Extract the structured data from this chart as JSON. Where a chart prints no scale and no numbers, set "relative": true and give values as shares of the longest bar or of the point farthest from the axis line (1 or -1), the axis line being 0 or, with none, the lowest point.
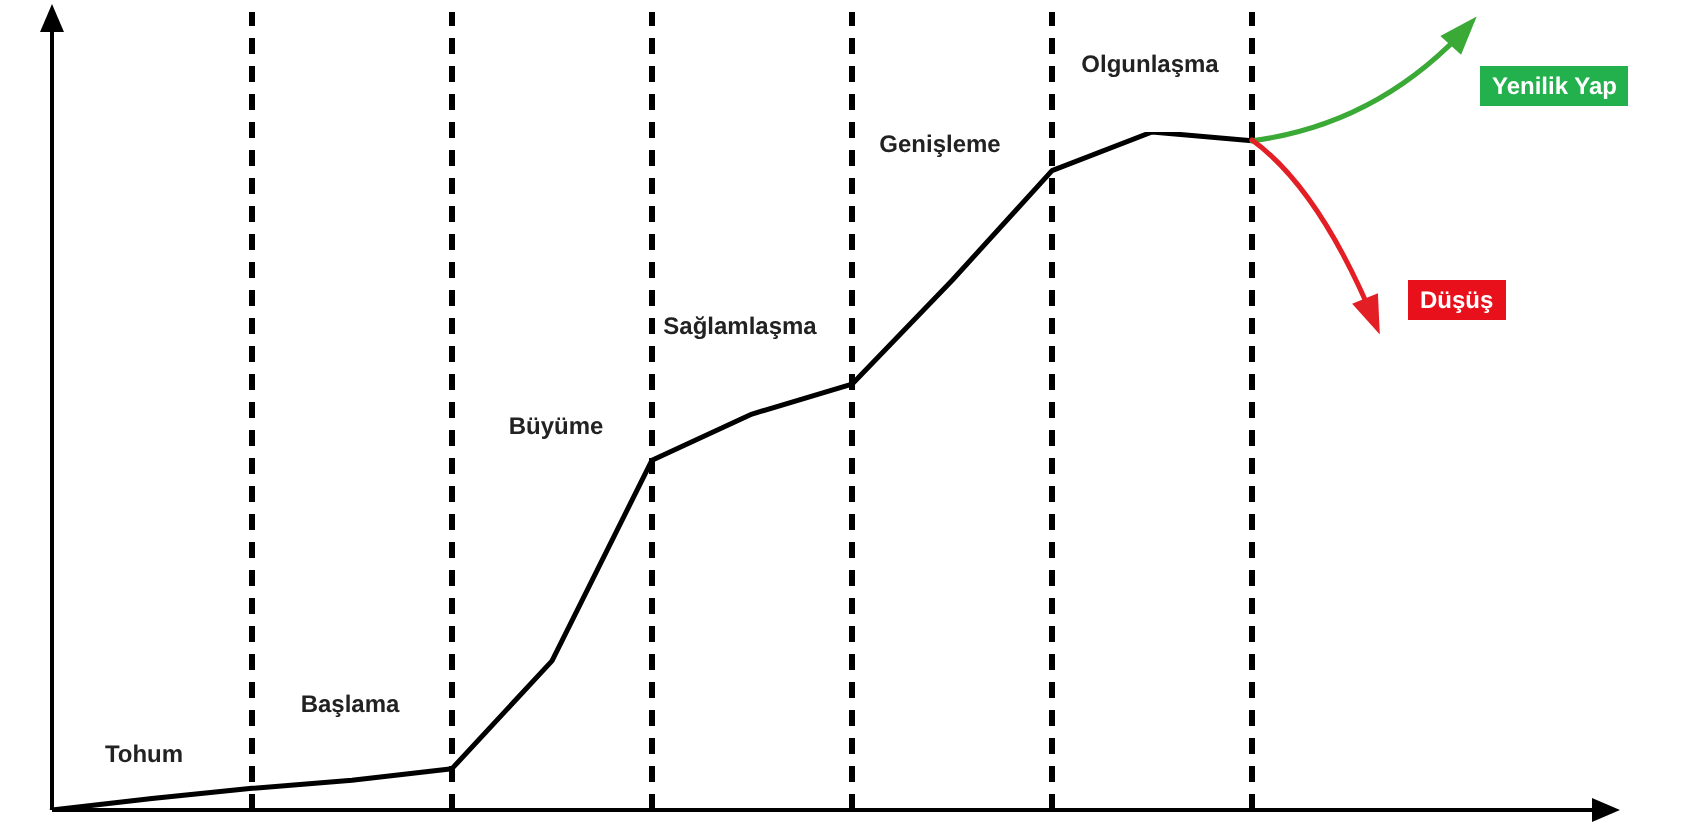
{
  "chart_data": {
    "type": "line",
    "relative": true,
    "grid": "x",
    "legend": false,
    "marker": "none",
    "line_style": "solid",
    "tick_labels": false,
    "categories": [
      null,
      null,
      null,
      null,
      null,
      null,
      null,
      null,
      null,
      null,
      null,
      null,
      null,
      null,
      null,
      null
    ],
    "series": [
      {
        "color": "#000000",
        "values": [
          0,
          0.017,
          0.032,
          0.044,
          0.061,
          0.22,
          0.516,
          0.584,
          0.628,
          0.781,
          0.943,
          1,
          0.987,
          null,
          null,
          null
        ]
      }
    ],
    "annotations": [
      "Tohum",
      "Başlama",
      "Büyüme",
      "Sağlamlaşma",
      "Genişleme",
      "Olgunlaşma",
      "Yenilik Yap",
      "Düşüş"
    ]
  }
}
